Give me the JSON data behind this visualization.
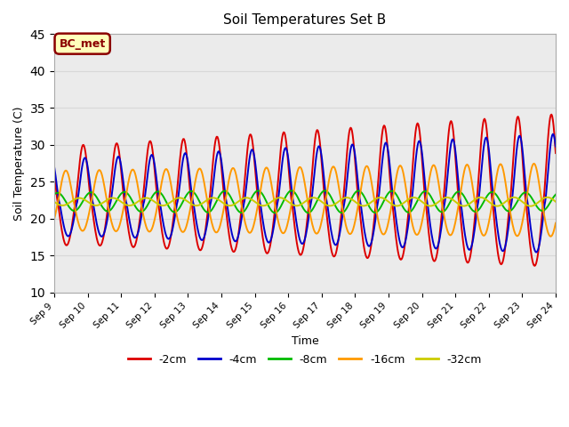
{
  "title": "Soil Temperatures Set B",
  "xlabel": "Time",
  "ylabel": "Soil Temperature (C)",
  "ylim": [
    10,
    45
  ],
  "yticks": [
    10,
    15,
    20,
    25,
    30,
    35,
    40,
    45
  ],
  "annotation": "BC_met",
  "grid_color": "#d8d8d8",
  "plot_bg": "#ebebeb",
  "upper_bg": "#f5f5f5",
  "lower_bg": "#e0e0e0",
  "colors": {
    "-2cm": "#dd0000",
    "-4cm": "#0000cc",
    "-8cm": "#00bb00",
    "-16cm": "#ff9900",
    "-32cm": "#cccc00"
  },
  "linewidth": 1.4,
  "xtick_labels": [
    "Sep 9",
    "Sep 10",
    "Sep 11",
    "Sep 12",
    "Sep 13",
    "Sep 14",
    "Sep 15",
    "Sep 16",
    "Sep 17",
    "Sep 18",
    "Sep 19",
    "Sep 20",
    "Sep 21",
    "Sep 22",
    "Sep 23",
    "Sep 24"
  ],
  "legend_order": [
    "-2cm",
    "-4cm",
    "-8cm",
    "-16cm",
    "-32cm"
  ]
}
